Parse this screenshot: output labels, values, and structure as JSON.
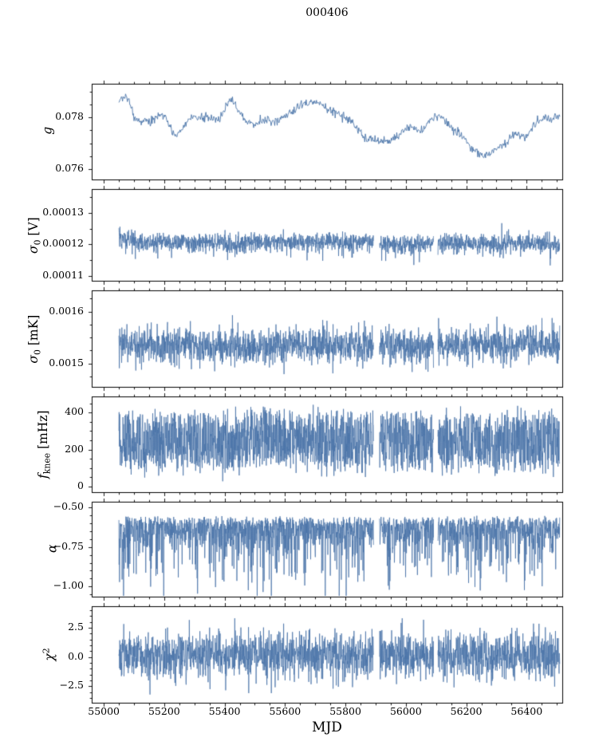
{
  "title": "000406",
  "xlabel": "MJD",
  "line_color": "#4a74a8",
  "axis_color": "#000000",
  "background": "#ffffff",
  "seed": 20,
  "chart_data": {
    "type": "line",
    "title": "000406",
    "xlabel": "MJD",
    "xlim": [
      54960,
      56518
    ],
    "x_range_data": [
      55050,
      56510
    ],
    "xticks": [
      55000,
      55200,
      55400,
      55600,
      55800,
      56000,
      56200,
      56400
    ],
    "xtick_labels": [
      "55000",
      "55200",
      "55400",
      "55600",
      "55800",
      "56000",
      "56200",
      "56400"
    ],
    "x_minor_step": 50,
    "gaps": [
      [
        55893,
        55913
      ],
      [
        56092,
        56106
      ]
    ],
    "panels": [
      {
        "ylabel_text": "g",
        "ylabel_parts": [
          {
            "t": "g",
            "italic": true
          }
        ],
        "ylim": [
          0.0756,
          0.0793
        ],
        "yticks": [
          0.078,
          0.076
        ],
        "ytick_labels": [
          "0.078",
          "0.076"
        ],
        "y_minor_step": 0.0005,
        "trace": {
          "kind": "smooth",
          "step": 2,
          "lw": 0.9,
          "noise": 0.00018,
          "keypoints": [
            [
              55050,
              0.0786
            ],
            [
              55075,
              0.0789
            ],
            [
              55105,
              0.0779
            ],
            [
              55150,
              0.0778
            ],
            [
              55195,
              0.0782
            ],
            [
              55240,
              0.0772
            ],
            [
              55285,
              0.078
            ],
            [
              55340,
              0.078
            ],
            [
              55385,
              0.0779
            ],
            [
              55420,
              0.0788
            ],
            [
              55450,
              0.0782
            ],
            [
              55485,
              0.0777
            ],
            [
              55530,
              0.0779
            ],
            [
              55570,
              0.0778
            ],
            [
              55610,
              0.0781
            ],
            [
              55655,
              0.0785
            ],
            [
              55700,
              0.0786
            ],
            [
              55745,
              0.0783
            ],
            [
              55785,
              0.0781
            ],
            [
              55825,
              0.0778
            ],
            [
              55865,
              0.0772
            ],
            [
              55905,
              0.0771
            ],
            [
              55950,
              0.0771
            ],
            [
              55985,
              0.0774
            ],
            [
              56015,
              0.0777
            ],
            [
              56045,
              0.0774
            ],
            [
              56080,
              0.0779
            ],
            [
              56115,
              0.0781
            ],
            [
              56150,
              0.0776
            ],
            [
              56185,
              0.0773
            ],
            [
              56220,
              0.0768
            ],
            [
              56260,
              0.0765
            ],
            [
              56295,
              0.0767
            ],
            [
              56330,
              0.077
            ],
            [
              56365,
              0.0774
            ],
            [
              56395,
              0.0772
            ],
            [
              56425,
              0.0777
            ],
            [
              56455,
              0.078
            ],
            [
              56485,
              0.0779
            ],
            [
              56510,
              0.0781
            ]
          ]
        }
      },
      {
        "ylabel_text": "σ0 [V]",
        "ylabel_parts": [
          {
            "t": "σ",
            "italic": true
          },
          {
            "t": "0",
            "sub": true
          },
          {
            "t": " [V]"
          }
        ],
        "ylim": [
          0.0001085,
          0.0001375
        ],
        "yticks": [
          0.00013,
          0.00012,
          0.00011
        ],
        "ytick_labels": [
          "0.00013",
          "0.00012",
          "0.00011"
        ],
        "y_minor_step": 5e-06,
        "trace": {
          "kind": "noise",
          "step": 0.7,
          "lw": 0.8,
          "use_gaps": true,
          "center": [
            [
              55050,
              0.0001218
            ],
            [
              55120,
              0.0001207
            ],
            [
              55400,
              0.0001205
            ],
            [
              55600,
              0.0001209
            ],
            [
              55750,
              0.000121
            ],
            [
              55900,
              0.0001204
            ],
            [
              56100,
              0.0001202
            ],
            [
              56300,
              0.0001205
            ],
            [
              56510,
              0.0001202
            ]
          ],
          "sigma": 1.4e-06,
          "down_tail": [
            0.1,
            2.2e-06
          ],
          "up_tail": [
            0.04,
            1.2e-06
          ],
          "start_spike": 0.0001252
        }
      },
      {
        "ylabel_text": "σ0 [mK]",
        "ylabel_parts": [
          {
            "t": "σ",
            "italic": true
          },
          {
            "t": "0",
            "sub": true
          },
          {
            "t": " [mK]"
          }
        ],
        "ylim": [
          0.001455,
          0.001641
        ],
        "yticks": [
          0.0016,
          0.0015
        ],
        "ytick_labels": [
          "0.0016",
          "0.0015"
        ],
        "y_minor_step": 2.5e-05,
        "trace": {
          "kind": "noise",
          "step": 0.7,
          "lw": 0.8,
          "use_gaps": true,
          "center": [
            [
              55050,
              0.001535
            ],
            [
              55300,
              0.001538
            ],
            [
              55500,
              0.001532
            ],
            [
              55700,
              0.001536
            ],
            [
              55900,
              0.001534
            ],
            [
              56100,
              0.001533
            ],
            [
              56300,
              0.001536
            ],
            [
              56510,
              0.001535
            ]
          ],
          "sigma": 1.7e-05,
          "down_tail": [
            0.05,
            1.2e-05
          ],
          "up_tail": [
            0.05,
            1e-05
          ]
        }
      },
      {
        "ylabel_text": "fknee [mHz]",
        "ylabel_parts": [
          {
            "t": "f",
            "italic": true
          },
          {
            "t": "knee",
            "sub": true
          },
          {
            "t": " [mHz]"
          }
        ],
        "ylim": [
          -30,
          487
        ],
        "yticks": [
          400,
          200,
          0
        ],
        "ytick_labels": [
          "400",
          "200",
          "0"
        ],
        "y_minor_step": 50,
        "trace": {
          "kind": "noise",
          "step": 0.7,
          "lw": 0.8,
          "use_gaps": true,
          "center": [
            [
              55050,
              245
            ],
            [
              56510,
              245
            ]
          ],
          "sigma": 26,
          "uniform": 150,
          "down_tail": [
            0.03,
            40
          ],
          "up_tail": [
            0.02,
            30
          ]
        }
      },
      {
        "ylabel_text": "α",
        "ylabel_parts": [
          {
            "t": "α",
            "italic": true
          }
        ],
        "ylim": [
          -1.065,
          -0.462
        ],
        "yticks": [
          -0.5,
          -0.75,
          -1.0
        ],
        "ytick_labels": [
          "−0.50",
          "−0.75",
          "−1.00"
        ],
        "y_minor_step": 0.05,
        "trace": {
          "kind": "noise",
          "step": 0.7,
          "lw": 0.8,
          "use_gaps": true,
          "center": [
            [
              55050,
              -0.585
            ],
            [
              56510,
              -0.585
            ]
          ],
          "sigma": 0.075,
          "fold": "down",
          "jitter_up": 0.035,
          "down_tail": [
            0.28,
            0.17
          ]
        }
      },
      {
        "ylabel_text": "χ2",
        "ylabel_parts": [
          {
            "t": "χ",
            "italic": true
          },
          {
            "t": "2",
            "sup": true
          }
        ],
        "ylim": [
          -3.9,
          4.35
        ],
        "yticks": [
          2.5,
          0.0,
          -2.5
        ],
        "ytick_labels": [
          "2.5",
          "0.0",
          "−2.5"
        ],
        "y_minor_step": 0.5,
        "trace": {
          "kind": "noise",
          "step": 0.7,
          "lw": 0.8,
          "use_gaps": true,
          "center": [
            [
              55050,
              0.12
            ],
            [
              56510,
              0.12
            ]
          ],
          "sigma": 1.0,
          "down_tail": [
            0.03,
            0.7
          ],
          "up_tail": [
            0.03,
            0.5
          ]
        }
      }
    ]
  }
}
